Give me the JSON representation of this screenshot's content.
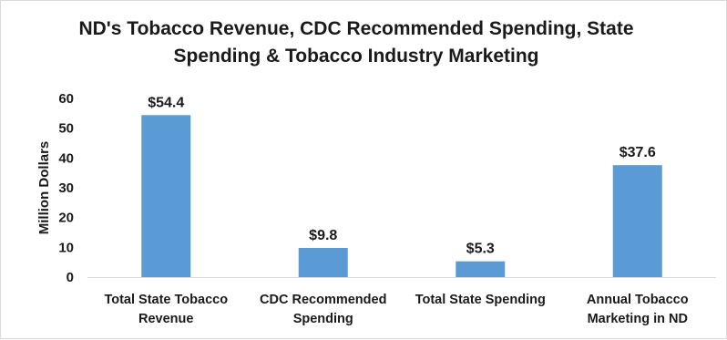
{
  "chart_data": {
    "type": "bar",
    "title_lines": [
      "ND's Tobacco Revenue, CDC Recommended Spending, State",
      "Spending & Tobacco Industry Marketing"
    ],
    "categories": [
      [
        "Total State Tobacco",
        "Revenue"
      ],
      [
        "CDC Recommended",
        "Spending"
      ],
      [
        "Total State Spending"
      ],
      [
        "Annual Tobacco",
        "Marketing in ND"
      ]
    ],
    "values": [
      54.4,
      9.8,
      5.3,
      37.6
    ],
    "data_labels": [
      "$54.4",
      "$9.8",
      "$5.3",
      "$37.6"
    ],
    "xlabel": "",
    "ylabel": "Million Dollars",
    "ylim": [
      0,
      60
    ],
    "yticks": [
      0,
      10,
      20,
      30,
      40,
      50,
      60
    ],
    "grid": false,
    "legend": "none",
    "colors": {
      "bar": "#5b9bd5",
      "axis": "#d9d9d9",
      "text": "#1a1a1a"
    }
  }
}
